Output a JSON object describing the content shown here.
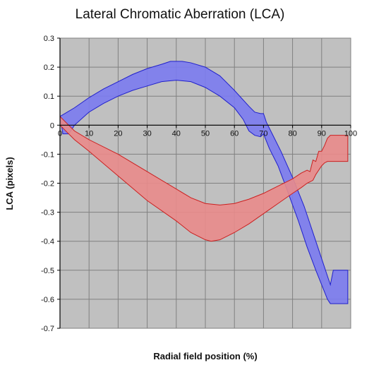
{
  "chart_data": {
    "type": "area",
    "title": "Lateral Chromatic Aberration (LCA)",
    "xlabel": "Radial field position (%)",
    "ylabel": "LCA (pixels)",
    "xlim": [
      0,
      100
    ],
    "ylim": [
      -0.7,
      0.3
    ],
    "xticks": [
      0,
      10,
      20,
      30,
      40,
      50,
      60,
      70,
      80,
      90,
      100
    ],
    "yticks": [
      0.3,
      0.2,
      0.1,
      0,
      -0.1,
      -0.2,
      -0.3,
      -0.4,
      -0.5,
      -0.6,
      -0.7
    ],
    "grid": true,
    "colors": {
      "plot_bg": "#c0c0c0",
      "grid": "#808080",
      "blue_fill": "#7b7bf0",
      "blue_edge": "#2020cc",
      "red_fill": "#e98b8b",
      "red_edge": "#cc1f1f"
    },
    "series": [
      {
        "color": "blue",
        "upper": [
          [
            0,
            0.03
          ],
          [
            5,
            0.06
          ],
          [
            10,
            0.095
          ],
          [
            15,
            0.125
          ],
          [
            20,
            0.15
          ],
          [
            25,
            0.175
          ],
          [
            30,
            0.195
          ],
          [
            35,
            0.21
          ],
          [
            38,
            0.22
          ],
          [
            42,
            0.22
          ],
          [
            45,
            0.215
          ],
          [
            50,
            0.2
          ],
          [
            55,
            0.17
          ],
          [
            60,
            0.12
          ],
          [
            65,
            0.065
          ],
          [
            67,
            0.045
          ],
          [
            69,
            0.04
          ],
          [
            70,
            0.04
          ],
          [
            71,
            0.01
          ],
          [
            73,
            -0.03
          ],
          [
            76,
            -0.09
          ],
          [
            80,
            -0.18
          ],
          [
            84,
            -0.28
          ],
          [
            88,
            -0.4
          ],
          [
            91,
            -0.49
          ],
          [
            93,
            -0.55
          ],
          [
            94,
            -0.5
          ],
          [
            99,
            -0.5
          ]
        ],
        "lower": [
          [
            0,
            0.03
          ],
          [
            1,
            -0.03
          ],
          [
            3,
            -0.03
          ],
          [
            5,
            0.0
          ],
          [
            10,
            0.045
          ],
          [
            15,
            0.075
          ],
          [
            20,
            0.1
          ],
          [
            25,
            0.12
          ],
          [
            30,
            0.135
          ],
          [
            35,
            0.15
          ],
          [
            40,
            0.155
          ],
          [
            45,
            0.15
          ],
          [
            50,
            0.13
          ],
          [
            55,
            0.1
          ],
          [
            60,
            0.06
          ],
          [
            63,
            0.02
          ],
          [
            65,
            -0.02
          ],
          [
            67,
            -0.035
          ],
          [
            69,
            -0.04
          ],
          [
            70,
            -0.03
          ],
          [
            72,
            -0.08
          ],
          [
            75,
            -0.14
          ],
          [
            78,
            -0.22
          ],
          [
            82,
            -0.33
          ],
          [
            85,
            -0.42
          ],
          [
            88,
            -0.5
          ],
          [
            90,
            -0.55
          ],
          [
            92,
            -0.6
          ],
          [
            93,
            -0.615
          ],
          [
            99,
            -0.615
          ]
        ]
      },
      {
        "color": "red",
        "upper": [
          [
            0,
            0.03
          ],
          [
            1,
            0.02
          ],
          [
            3,
            0.0
          ],
          [
            5,
            -0.02
          ],
          [
            10,
            -0.05
          ],
          [
            20,
            -0.1
          ],
          [
            30,
            -0.16
          ],
          [
            40,
            -0.22
          ],
          [
            45,
            -0.25
          ],
          [
            50,
            -0.27
          ],
          [
            55,
            -0.275
          ],
          [
            60,
            -0.27
          ],
          [
            65,
            -0.255
          ],
          [
            70,
            -0.235
          ],
          [
            75,
            -0.21
          ],
          [
            80,
            -0.185
          ],
          [
            83,
            -0.165
          ],
          [
            84,
            -0.16
          ],
          [
            85,
            -0.155
          ],
          [
            86,
            -0.16
          ],
          [
            87,
            -0.12
          ],
          [
            88,
            -0.125
          ],
          [
            89,
            -0.09
          ],
          [
            90,
            -0.09
          ],
          [
            91,
            -0.07
          ],
          [
            92,
            -0.045
          ],
          [
            93,
            -0.035
          ],
          [
            99,
            -0.035
          ]
        ],
        "lower": [
          [
            0,
            0.0
          ],
          [
            5,
            -0.05
          ],
          [
            10,
            -0.09
          ],
          [
            20,
            -0.175
          ],
          [
            30,
            -0.26
          ],
          [
            40,
            -0.33
          ],
          [
            45,
            -0.37
          ],
          [
            50,
            -0.395
          ],
          [
            52,
            -0.4
          ],
          [
            55,
            -0.395
          ],
          [
            60,
            -0.37
          ],
          [
            65,
            -0.34
          ],
          [
            70,
            -0.305
          ],
          [
            75,
            -0.27
          ],
          [
            80,
            -0.235
          ],
          [
            83,
            -0.215
          ],
          [
            85,
            -0.2
          ],
          [
            87,
            -0.19
          ],
          [
            88,
            -0.17
          ],
          [
            89,
            -0.155
          ],
          [
            90,
            -0.14
          ],
          [
            91,
            -0.13
          ],
          [
            92,
            -0.125
          ],
          [
            99,
            -0.125
          ]
        ]
      }
    ]
  }
}
